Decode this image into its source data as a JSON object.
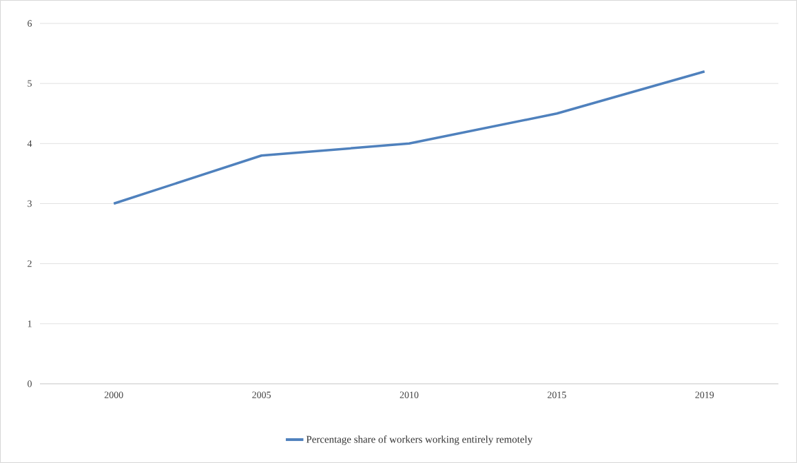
{
  "chart_data": {
    "type": "line",
    "categories": [
      "2000",
      "2005",
      "2010",
      "2015",
      "2019"
    ],
    "series": [
      {
        "name": "Percentage share of workers working entirely remotely",
        "color": "#4f81bd",
        "values": [
          3,
          3.8,
          4,
          4.5,
          5.2
        ]
      }
    ],
    "ylim": [
      0,
      6
    ],
    "yticks": [
      0,
      1,
      2,
      3,
      4,
      5,
      6
    ],
    "grid": "y",
    "legend": "bottom"
  }
}
